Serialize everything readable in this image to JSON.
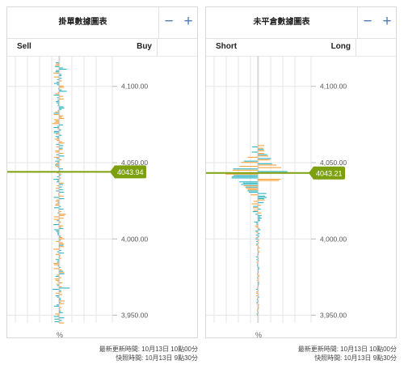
{
  "panels": [
    {
      "title": "掛單數據圖表",
      "left_side": "Sell",
      "right_side": "Buy",
      "price_label": "4043.94",
      "price": 4043.94,
      "percent_label": "%",
      "footer_updated": "最新更新時間: 10月13日 10點00分",
      "footer_snapshot": "快照時間: 10月13日 9點30分"
    },
    {
      "title": "未平倉數據圖表",
      "left_side": "Short",
      "right_side": "Long",
      "price_label": "4043.21",
      "price": 4043.21,
      "percent_label": "%",
      "footer_updated": "最新更新時間: 10月13日 10點00分",
      "footer_snapshot": "快照時間: 10月13日 9點30分"
    }
  ],
  "zoom": {
    "minus": "−",
    "plus": "+"
  },
  "axis": {
    "ticks": [
      4100,
      4050,
      4000,
      3950
    ],
    "tick_labels": [
      "4,100.00",
      "4,050.00",
      "4,000.00",
      "3,950.00"
    ],
    "price_range": [
      3945,
      4120
    ]
  },
  "colors": {
    "teal": "#2bb5c0",
    "orange": "#f7a23b",
    "marker": "#7da10e",
    "grid": "#e6e6e6",
    "axis_text": "#555555",
    "button": "#4a7fb5"
  }
}
